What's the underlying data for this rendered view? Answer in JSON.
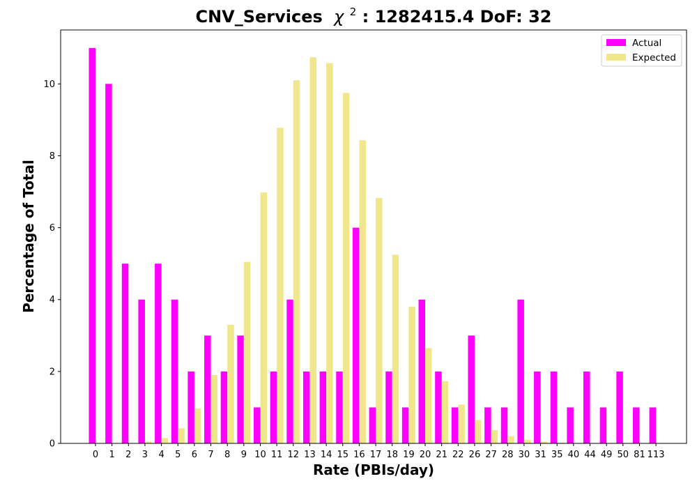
{
  "chart_data": {
    "type": "bar",
    "title": "CNV_Services",
    "title_stat": ": 1282415.4 DoF: 32",
    "chi_symbol": "χ",
    "chi_exponent": "2",
    "xlabel": "Rate (PBIs/day)",
    "ylabel": "Percentage of Total",
    "ylim": [
      0,
      11.5
    ],
    "yticks": [
      "0",
      "2",
      "4",
      "6",
      "8",
      "10"
    ],
    "categories": [
      "0",
      "1",
      "2",
      "3",
      "4",
      "5",
      "6",
      "7",
      "8",
      "9",
      "10",
      "11",
      "12",
      "13",
      "14",
      "15",
      "16",
      "17",
      "18",
      "19",
      "20",
      "21",
      "22",
      "26",
      "27",
      "28",
      "30",
      "31",
      "35",
      "40",
      "44",
      "49",
      "50",
      "81",
      "113"
    ],
    "series": [
      {
        "name": "Actual",
        "color": "#ff00ff",
        "values": [
          11,
          10,
          5,
          4,
          5,
          4,
          2,
          3,
          2,
          3,
          1,
          2,
          4,
          2,
          2,
          2,
          6,
          1,
          2,
          1,
          4,
          2,
          1,
          3,
          1,
          1,
          4,
          2,
          2,
          1,
          2,
          1,
          2,
          1,
          1
        ]
      },
      {
        "name": "Expected",
        "color": "#f0e68c",
        "values": [
          0,
          0,
          0.01,
          0.05,
          0.15,
          0.42,
          0.97,
          1.9,
          3.3,
          5.05,
          6.98,
          8.78,
          10.1,
          10.74,
          10.58,
          9.75,
          8.43,
          6.83,
          5.25,
          3.8,
          2.65,
          1.73,
          1.08,
          0.65,
          0.37,
          0.2,
          0.1,
          0.05,
          0.02,
          0.01,
          0,
          0,
          0,
          0,
          0
        ]
      }
    ],
    "legend_position": "top-right",
    "grid": false
  }
}
